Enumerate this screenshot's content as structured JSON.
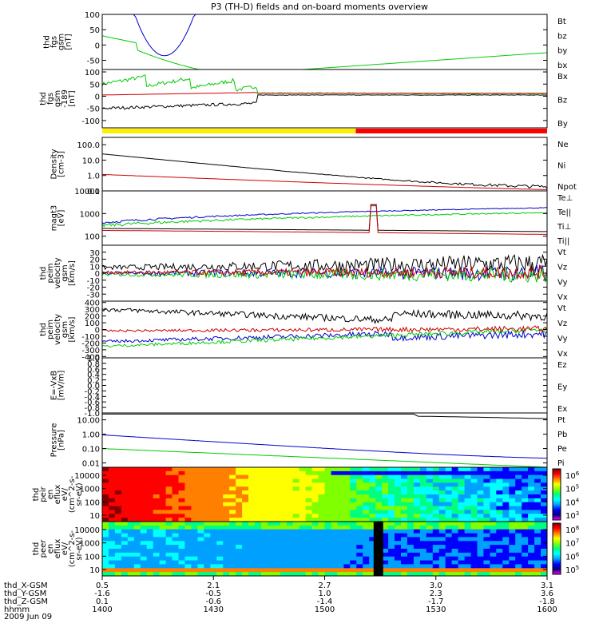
{
  "title": "P3 (TH-D) fields and on-board moments overview",
  "date": "2009 Jun 09",
  "chart_data": [
    {
      "type": "line",
      "name": "fgs",
      "ylabel": [
        "thd",
        "fgs",
        "gsm",
        "[nT]"
      ],
      "ylim": [
        -80,
        100
      ],
      "yticks": [
        100,
        50,
        0,
        -50
      ],
      "legend": [
        {
          "label": "Bt",
          "color": "#000000"
        },
        {
          "label": "bz",
          "color": "#cc0000"
        },
        {
          "label": "by",
          "color": "#00cc00"
        },
        {
          "label": "bx",
          "color": "#0000cc"
        }
      ]
    },
    {
      "type": "line",
      "name": "fgs_gse",
      "ylabel": [
        "thd",
        "fgs",
        "gsm",
        "-189",
        "[nT]"
      ],
      "ylim": [
        -130,
        110
      ],
      "yticks": [
        100,
        50,
        0,
        -50,
        -100
      ],
      "legend": [
        {
          "label": "Bx",
          "color": "#000000"
        },
        {
          "label": "Bz",
          "color": "#cc0000"
        },
        {
          "label": "By",
          "color": "#00cc00"
        }
      ]
    },
    {
      "type": "line",
      "name": "density",
      "ylabel": [
        "Density",
        "[cm-3]"
      ],
      "yscale": "log",
      "ylim": [
        0.1,
        300
      ],
      "yticks": [
        "100.0",
        "10.0",
        "1.0",
        "0.1"
      ],
      "legend": [
        {
          "label": "Ne",
          "color": "#cc0000"
        },
        {
          "label": "Ni",
          "color": "#000000"
        },
        {
          "label": "Npot",
          "color": "#0000cc"
        }
      ]
    },
    {
      "type": "line",
      "name": "temperature",
      "ylabel": [
        "magt3",
        "[eV]"
      ],
      "yscale": "log",
      "ylim": [
        40,
        10000
      ],
      "yticks": [
        "10000",
        "1000",
        "100"
      ],
      "legend": [
        {
          "label": "Te⊥",
          "color": "#cc0000"
        },
        {
          "label": "Te||",
          "color": "#000000"
        },
        {
          "label": "Ti⊥",
          "color": "#0000cc"
        },
        {
          "label": "Ti||",
          "color": "#00cc00"
        }
      ]
    },
    {
      "type": "line",
      "name": "peim",
      "ylabel": [
        "thd",
        "peim",
        "velocity",
        "gsm",
        "[km/s]"
      ],
      "ylim": [
        -40,
        40
      ],
      "yticks": [
        30,
        20,
        10,
        0,
        -10,
        -20,
        -30
      ],
      "legend": [
        {
          "label": "Vt",
          "color": "#000000"
        },
        {
          "label": "Vz",
          "color": "#cc0000"
        },
        {
          "label": "Vy",
          "color": "#00cc00"
        },
        {
          "label": "Vx",
          "color": "#0000cc"
        }
      ]
    },
    {
      "type": "line",
      "name": "peir",
      "ylabel": [
        "thd",
        "peim",
        "velocity",
        "gsm",
        "[km/s]"
      ],
      "ylim": [
        -420,
        420
      ],
      "yticks": [
        400,
        300,
        200,
        100,
        0,
        -100,
        -200,
        -300,
        -400
      ],
      "legend": [
        {
          "label": "Vt",
          "color": "#000000"
        },
        {
          "label": "Vz",
          "color": "#cc0000"
        },
        {
          "label": "Vy",
          "color": "#00cc00"
        },
        {
          "label": "Vx",
          "color": "#0000cc"
        }
      ]
    },
    {
      "type": "line",
      "name": "efield",
      "ylabel": [
        "E=-VxB",
        "[mV/m]"
      ],
      "ylim": [
        -1.0,
        1.0
      ],
      "yticks": [
        "1.0",
        "0.8",
        "0.6",
        "0.4",
        "0.2",
        "0.0",
        "-0.2",
        "-0.4",
        "-0.6",
        "-0.8",
        "-1.0"
      ],
      "legend": [
        {
          "label": "Ez",
          "color": "#cc0000"
        },
        {
          "label": "Ey",
          "color": "#00cc00"
        },
        {
          "label": "Ex",
          "color": "#0000cc"
        }
      ]
    },
    {
      "type": "line",
      "name": "pressure",
      "ylabel": [
        "Pressure",
        "[nPa]"
      ],
      "yscale": "log",
      "ylim": [
        0.005,
        30
      ],
      "yticks": [
        "10.00",
        "1.00",
        "0.10",
        "0.01"
      ],
      "legend": [
        {
          "label": "Pt",
          "color": "#000000"
        },
        {
          "label": "Pb",
          "color": "#cc0000"
        },
        {
          "label": "Pe",
          "color": "#00cc00"
        },
        {
          "label": "Pi",
          "color": "#0000cc"
        }
      ]
    },
    {
      "type": "heatmap",
      "name": "ion_spectrum",
      "ylabel": [
        "thd",
        "peir",
        "en",
        "eflux",
        "eV/",
        "(cm^2-s-",
        "sr-eV)"
      ],
      "yticks": [
        "10000",
        "1000",
        "100",
        "10"
      ],
      "colorbar": {
        "ticks": [
          "10^6",
          "10^5",
          "10^4",
          "10^3"
        ]
      }
    },
    {
      "type": "heatmap",
      "name": "electron_spectrum",
      "ylabel": [
        "thd",
        "peer",
        "en",
        "eflux",
        "eV/",
        "(cm^2-s-",
        "sr-eV)"
      ],
      "yticks": [
        "10000",
        "1000",
        "100",
        "10"
      ],
      "colorbar": {
        "ticks": [
          "10^8",
          "10^7",
          "10^6",
          "10^5"
        ]
      }
    }
  ],
  "xaxis": {
    "rows": [
      "thd_X-GSM",
      "thd_Y-GSM",
      "thd_Z-GSM",
      "hhmm"
    ],
    "values": [
      [
        "0.5",
        "2.1",
        "2.7",
        "3.0",
        "3.1"
      ],
      [
        "-1.6",
        "-0.5",
        "1.0",
        "2.3",
        "3.6"
      ],
      [
        "0.1",
        "-0.6",
        "-1.4",
        "-1.7",
        "-1.8"
      ],
      [
        "1400",
        "1430",
        "1500",
        "1530",
        "1600"
      ]
    ]
  }
}
